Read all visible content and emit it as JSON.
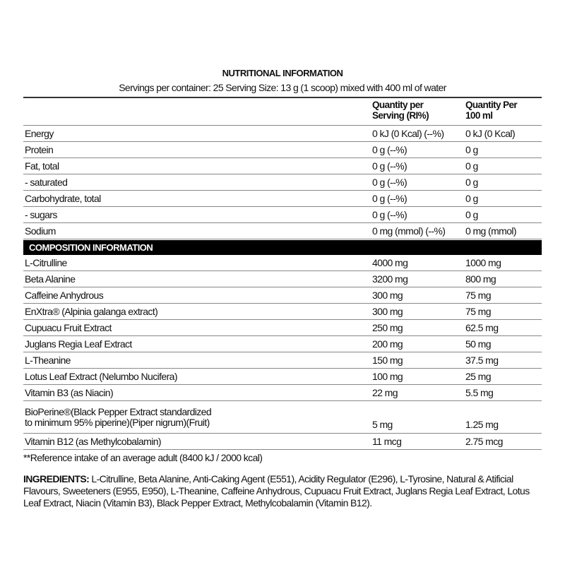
{
  "title": "NUTRITIONAL INFORMATION",
  "subtitle": "Servings per container: 25 Serving Size: 13 g (1 scoop) mixed with 400 ml of water",
  "headers": {
    "col2_line1": "Quantity per",
    "col2_line2": "Serving (RI%)",
    "col3_line1": "Quantity Per",
    "col3_line2": "100 ml"
  },
  "nutrition": [
    {
      "name": "Energy",
      "serving": "0 kJ (0 Kcal) (--%)",
      "per100": "0 kJ (0 Kcal)"
    },
    {
      "name": "Protein",
      "serving": "0 g (--%)",
      "per100": "0 g"
    },
    {
      "name": "Fat, total",
      "serving": "0 g (--%)",
      "per100": "0 g"
    },
    {
      "name": "- saturated",
      "serving": "0 g (--%)",
      "per100": "0 g"
    },
    {
      "name": "Carbohydrate, total",
      "serving": "0 g (--%)",
      "per100": "0 g"
    },
    {
      "name": "- sugars",
      "serving": "0 g (--%)",
      "per100": "0 g"
    },
    {
      "name": "Sodium",
      "serving": "0 mg (mmol) (--%)",
      "per100": "0 mg (mmol)"
    }
  ],
  "composition_title": "COMPOSITION INFORMATION",
  "composition": [
    {
      "name": "L-Citrulline",
      "serving": "4000 mg",
      "per100": "1000 mg"
    },
    {
      "name": "Beta Alanine",
      "serving": "3200 mg",
      "per100": "800 mg"
    },
    {
      "name": "Caffeine Anhydrous",
      "serving": "300 mg",
      "per100": "75 mg"
    },
    {
      "name": "EnXtra® (Alpinia galanga extract)",
      "serving": "300 mg",
      "per100": "75 mg"
    },
    {
      "name": "Cupuacu Fruit Extract",
      "serving": "250 mg",
      "per100": "62.5 mg"
    },
    {
      "name": "Juglans Regia Leaf Extract",
      "serving": "200 mg",
      "per100": "50 mg"
    },
    {
      "name": "L-Theanine",
      "serving": "150 mg",
      "per100": "37.5 mg"
    },
    {
      "name": "Lotus Leaf Extract (Nelumbo Nucifera)",
      "serving": "100 mg",
      "per100": "25 mg"
    },
    {
      "name": "Vitamin B3 (as Niacin)",
      "serving": "22 mg",
      "per100": "5.5 mg"
    },
    {
      "name": "BioPerine®(Black Pepper Extract standardized",
      "name_line2": "to minimum 95% piperine)(Piper nigrum)(Fruit)",
      "serving": "5 mg",
      "per100": "1.25 mg"
    },
    {
      "name": "Vitamin B12 (as Methylcobalamin)",
      "serving": "11 mcg",
      "per100": "2.75 mcg"
    }
  ],
  "footnote": "**Reference intake of an average adult (8400 kJ / 2000 kcal)",
  "ingredients_label": "INGREDIENTS:",
  "ingredients_text": " L-Citrulline, Beta Alanine, Anti-Caking Agent (E551), Acidity Regulator (E296), L-Tyrosine, Natural & Atificial Flavours, Sweeteners (E955, E950), L-Theanine, Caffeine Anhydrous, Cupuacu Fruit Extract, Juglans Regia Leaf Extract, Lotus Leaf Extract, Niacin (Vitamin B3), Black Pepper Extract, Methylcobalamin (Vitamin B12)."
}
